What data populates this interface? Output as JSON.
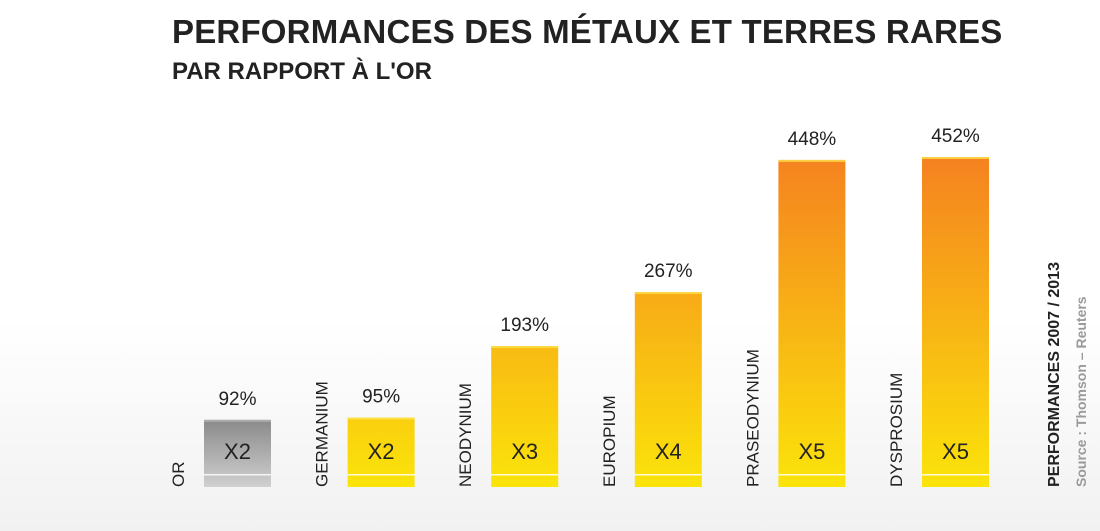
{
  "chart_data": {
    "type": "bar",
    "title": "PERFORMANCES DES MÉTAUX ET TERRES RARES",
    "subtitle": "PAR RAPPORT À L'OR",
    "side_title": "PERFORMANCES 2007 / 2013",
    "source": "Source : Thomson – Reuters",
    "ylim": [
      0,
      452
    ],
    "categories": [
      "OR",
      "GERMANIUM",
      "NEODYNIUM",
      "EUROPIUM",
      "PRASEODYNIUM",
      "DYSPROSIUM"
    ],
    "values": [
      92,
      95,
      193,
      267,
      448,
      452
    ],
    "value_labels": [
      "92%",
      "95%",
      "193%",
      "267%",
      "448%",
      "452%"
    ],
    "multipliers": [
      "X2",
      "X2",
      "X3",
      "X4",
      "X5",
      "X5"
    ],
    "colors": {
      "gold_bar_top": "#8a8a8a",
      "gold_bar_bottom": "#d0d0d0",
      "metal_low": "#fbe40a",
      "metal_high": "#f58220",
      "text": "#222222",
      "source": "#9a9a9a"
    }
  }
}
